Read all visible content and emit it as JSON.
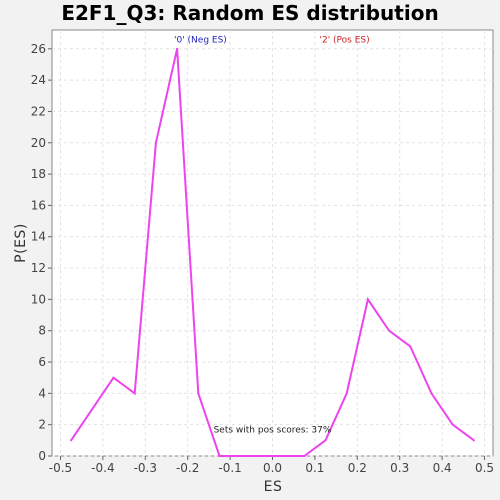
{
  "chart_data": {
    "type": "line",
    "title": "E2F1_Q3: Random ES distribution",
    "xlabel": "ES",
    "ylabel": "P(ES)",
    "xlim": [
      -0.52,
      0.52
    ],
    "ylim": [
      0,
      27.2
    ],
    "x_ticks": [
      -0.5,
      -0.4,
      -0.3,
      -0.2,
      -0.1,
      0.0,
      0.1,
      0.2,
      0.3,
      0.4,
      0.5
    ],
    "y_ticks": [
      0,
      2,
      4,
      6,
      8,
      10,
      12,
      14,
      16,
      18,
      20,
      22,
      24,
      26
    ],
    "grid": true,
    "series": [
      {
        "color": "#ee44ee",
        "x": [
          -0.475,
          -0.375,
          -0.325,
          -0.275,
          -0.225,
          -0.175,
          -0.125,
          -0.075,
          -0.025,
          0.025,
          0.075,
          0.125,
          0.175,
          0.225,
          0.275,
          0.325,
          0.375,
          0.425,
          0.475
        ],
        "y": [
          1,
          5,
          4,
          20,
          26,
          4,
          0,
          0,
          0,
          0,
          0,
          1,
          4,
          10,
          8,
          7,
          4,
          2,
          1
        ]
      }
    ],
    "annotations": [
      {
        "text": "'0' (Neg ES)",
        "color": "#2222bb",
        "x": -0.17,
        "y": 26.6
      },
      {
        "text": "'2' (Pos ES)",
        "color": "#cc2222",
        "x": 0.17,
        "y": 26.6
      },
      {
        "text": "Sets with pos scores: 37%",
        "color": "#222222",
        "x": 0.0,
        "y": 1.7
      }
    ]
  }
}
